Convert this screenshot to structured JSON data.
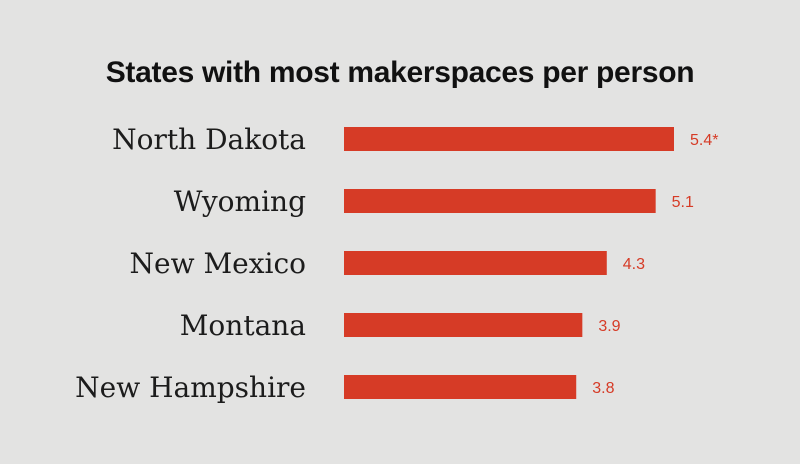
{
  "chart_data": {
    "type": "bar",
    "orientation": "horizontal",
    "title": "States with most makerspaces per person",
    "categories": [
      "North Dakota",
      "Wyoming",
      "New Mexico",
      "Montana",
      "New Hampshire"
    ],
    "values": [
      5.4,
      5.1,
      4.3,
      3.9,
      3.8
    ],
    "value_labels": [
      "5.4*",
      "5.1",
      "4.3",
      "3.9",
      "3.8"
    ],
    "xlim": [
      0,
      5.4
    ],
    "grid": false,
    "legend": "none",
    "colors": {
      "background": "#e3e3e2",
      "bar": "#d63b26",
      "value_label": "#d63b26",
      "category_label": "#1c1c1c",
      "title": "#111111"
    }
  }
}
